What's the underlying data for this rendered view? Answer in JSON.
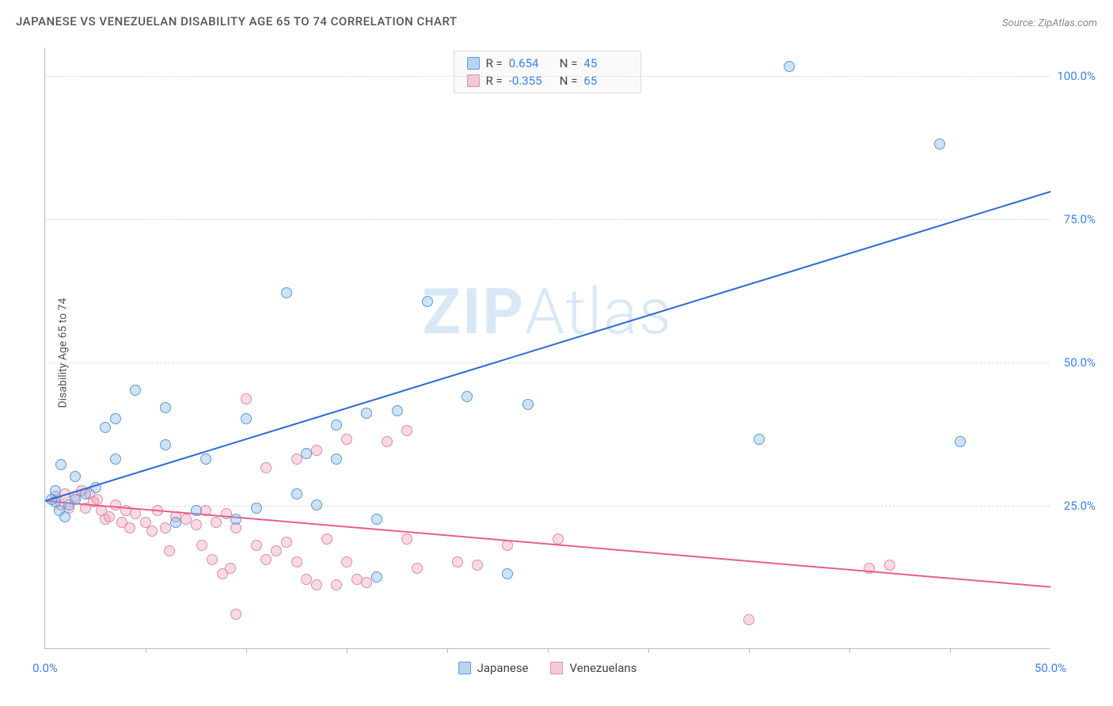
{
  "chart": {
    "type": "scatter",
    "title": "JAPANESE VS VENEZUELAN DISABILITY AGE 65 TO 74 CORRELATION CHART",
    "source": "Source: ZipAtlas.com",
    "ylabel": "Disability Age 65 to 74",
    "watermark_bold": "ZIP",
    "watermark_thin": "Atlas",
    "background_color": "#ffffff",
    "grid_color": "#dddddd",
    "axis_color": "#bbbbbb",
    "label_color": "#555555",
    "tick_color": "#3b82f6",
    "title_fontsize": 15,
    "label_fontsize": 14,
    "tick_fontsize": 15,
    "xlim": [
      0,
      50
    ],
    "ylim": [
      0,
      105
    ],
    "xtick_values": [
      0,
      50
    ],
    "xtick_labels": [
      "0.0%",
      "50.0%"
    ],
    "xtick_minor": [
      5,
      10,
      15,
      20,
      25,
      30,
      35,
      40,
      45
    ],
    "ytick_values": [
      25,
      50,
      75,
      100
    ],
    "ytick_labels": [
      "25.0%",
      "50.0%",
      "75.0%",
      "100.0%"
    ],
    "marker_size": 14,
    "series": {
      "japanese": {
        "label": "Japanese",
        "color_fill": "rgba(118,172,228,0.35)",
        "color_stroke": "#5a9bd8",
        "line_color": "#2f68d6",
        "R": "0.654",
        "N": "45",
        "points": [
          [
            37,
            101.5
          ],
          [
            44.5,
            88
          ],
          [
            35.5,
            36.5
          ],
          [
            45.5,
            36
          ],
          [
            12,
            62
          ],
          [
            19,
            60.5
          ],
          [
            21,
            44
          ],
          [
            24,
            42.5
          ],
          [
            4.5,
            45
          ],
          [
            3.5,
            40
          ],
          [
            6,
            42
          ],
          [
            3,
            38.5
          ],
          [
            14.5,
            39
          ],
          [
            16,
            41
          ],
          [
            17.5,
            41.5
          ],
          [
            10,
            40
          ],
          [
            13,
            34
          ],
          [
            14.5,
            33
          ],
          [
            12.5,
            27
          ],
          [
            13.5,
            25
          ],
          [
            6,
            35.5
          ],
          [
            8,
            33
          ],
          [
            3.5,
            33
          ],
          [
            1.5,
            30
          ],
          [
            0.8,
            32
          ],
          [
            0.5,
            27.5
          ],
          [
            1.2,
            25
          ],
          [
            1.5,
            26
          ],
          [
            2,
            27
          ],
          [
            2.5,
            28
          ],
          [
            0.7,
            24
          ],
          [
            1,
            23
          ],
          [
            0.5,
            25.5
          ],
          [
            0.3,
            26
          ],
          [
            6.5,
            22
          ],
          [
            7.5,
            24
          ],
          [
            9.5,
            22.5
          ],
          [
            10.5,
            24.5
          ],
          [
            16.5,
            22.5
          ],
          [
            16.5,
            12.5
          ],
          [
            23,
            13
          ]
        ],
        "trendline": {
          "x1": 0,
          "y1": 26,
          "x2": 50,
          "y2": 80
        }
      },
      "venezuelans": {
        "label": "Venezuelans",
        "color_fill": "rgba(236,150,178,0.35)",
        "color_stroke": "#e58aa9",
        "line_color": "#e85d8f",
        "R": "-0.355",
        "N": "65",
        "points": [
          [
            10,
            43.5
          ],
          [
            15,
            36.5
          ],
          [
            17,
            36
          ],
          [
            18,
            38
          ],
          [
            11,
            31.5
          ],
          [
            12.5,
            33
          ],
          [
            13.5,
            34.5
          ],
          [
            0.5,
            26.5
          ],
          [
            0.8,
            25
          ],
          [
            1,
            27
          ],
          [
            1.2,
            24.5
          ],
          [
            1.5,
            26.5
          ],
          [
            1.8,
            27.5
          ],
          [
            2,
            24.5
          ],
          [
            2.2,
            27
          ],
          [
            2.4,
            25.5
          ],
          [
            2.6,
            26
          ],
          [
            2.8,
            24
          ],
          [
            3,
            22.5
          ],
          [
            3.2,
            23
          ],
          [
            3.5,
            25
          ],
          [
            3.8,
            22
          ],
          [
            4,
            24
          ],
          [
            4.2,
            21
          ],
          [
            4.5,
            23.5
          ],
          [
            5,
            22
          ],
          [
            5.3,
            20.5
          ],
          [
            5.6,
            24
          ],
          [
            6,
            21
          ],
          [
            6.5,
            23
          ],
          [
            7,
            22.5
          ],
          [
            7.5,
            21.5
          ],
          [
            8,
            24
          ],
          [
            8.5,
            22
          ],
          [
            9,
            23.5
          ],
          [
            9.5,
            21
          ],
          [
            6.2,
            17
          ],
          [
            7.8,
            18
          ],
          [
            8.3,
            15.5
          ],
          [
            8.8,
            13
          ],
          [
            9.2,
            14
          ],
          [
            9.5,
            6
          ],
          [
            10.5,
            18
          ],
          [
            11,
            15.5
          ],
          [
            11.5,
            17
          ],
          [
            12,
            18.5
          ],
          [
            12.5,
            15
          ],
          [
            13,
            12
          ],
          [
            13.5,
            11
          ],
          [
            14,
            19
          ],
          [
            14.5,
            11
          ],
          [
            15,
            15
          ],
          [
            15.5,
            12
          ],
          [
            16,
            11.5
          ],
          [
            18,
            19
          ],
          [
            18.5,
            14
          ],
          [
            20.5,
            15
          ],
          [
            21.5,
            14.5
          ],
          [
            23,
            18
          ],
          [
            25.5,
            19
          ],
          [
            35,
            5
          ],
          [
            41,
            14
          ],
          [
            42,
            14.5
          ]
        ],
        "trendline": {
          "x1": 0,
          "y1": 26,
          "x2": 50,
          "y2": 11
        }
      }
    }
  }
}
